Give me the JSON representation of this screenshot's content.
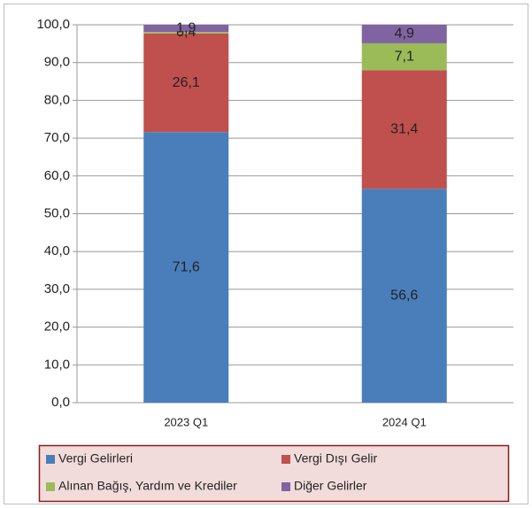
{
  "chart_data": {
    "type": "stacked-bar",
    "categories": [
      "2023 Q1",
      "2024 Q1"
    ],
    "series": [
      {
        "name": "Vergi Gelirleri",
        "color": "#4a7ebb",
        "values": [
          71.6,
          56.6
        ],
        "value_labels": [
          "71,6",
          "56,6"
        ]
      },
      {
        "name": "Vergi Dışı Gelir",
        "color": "#c0504d",
        "values": [
          26.1,
          31.4
        ],
        "value_labels": [
          "26,1",
          "31,4"
        ]
      },
      {
        "name": "Alınan Bağış, Yardım ve Krediler",
        "color": "#9bbb59",
        "values": [
          0.4,
          7.1
        ],
        "value_labels": [
          "0,4",
          "7,1"
        ]
      },
      {
        "name": "Diğer Gelirler",
        "color": "#8064a2",
        "values": [
          1.9,
          4.9
        ],
        "value_labels": [
          "1,9",
          "4,9"
        ]
      }
    ],
    "ylim": [
      0,
      100
    ],
    "yticks": [
      {
        "value": 0,
        "label": "0,0"
      },
      {
        "value": 10,
        "label": "10,0"
      },
      {
        "value": 20,
        "label": "20,0"
      },
      {
        "value": 30,
        "label": "30,0"
      },
      {
        "value": 40,
        "label": "40,0"
      },
      {
        "value": 50,
        "label": "50,0"
      },
      {
        "value": 60,
        "label": "60,0"
      },
      {
        "value": 70,
        "label": "70,0"
      },
      {
        "value": 80,
        "label": "80,0"
      },
      {
        "value": 90,
        "label": "90,0"
      },
      {
        "value": 100,
        "label": "100,0"
      }
    ],
    "grid": true,
    "legend": "bottom"
  }
}
